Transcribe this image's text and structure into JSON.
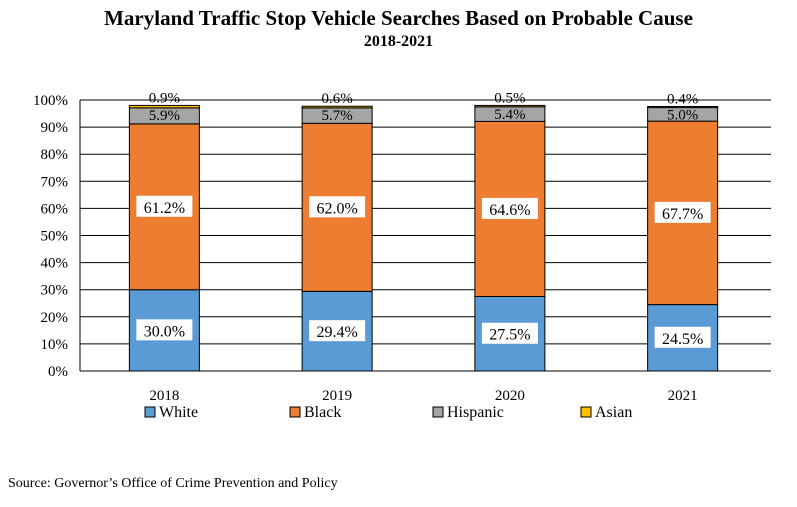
{
  "chart_data": {
    "type": "bar",
    "stacked": true,
    "title": "Maryland Traffic Stop Vehicle Searches Based on Probable Cause",
    "subtitle": "2018-2021",
    "categories": [
      "2018",
      "2019",
      "2020",
      "2021"
    ],
    "series": [
      {
        "name": "White",
        "values": [
          30.0,
          29.4,
          27.5,
          24.5
        ],
        "labels": [
          "30.0%",
          "29.4%",
          "27.5%",
          "24.5%"
        ],
        "color": "#5b9bd5"
      },
      {
        "name": "Black",
        "values": [
          61.2,
          62.0,
          64.6,
          67.7
        ],
        "labels": [
          "61.2%",
          "62.0%",
          "64.6%",
          "67.7%"
        ],
        "color": "#ed7d31"
      },
      {
        "name": "Hispanic",
        "values": [
          5.9,
          5.7,
          5.4,
          5.0
        ],
        "labels": [
          "5.9%",
          "5.7%",
          "5.4%",
          "5.0%"
        ],
        "color": "#a5a5a5"
      },
      {
        "name": "Asian",
        "values": [
          0.9,
          0.6,
          0.5,
          0.4
        ],
        "labels": [
          "0.9%",
          "0.6%",
          "0.5%",
          "0.4%"
        ],
        "color": "#ffc000"
      }
    ],
    "yticks": [
      "0%",
      "10%",
      "20%",
      "30%",
      "40%",
      "50%",
      "60%",
      "70%",
      "80%",
      "90%",
      "100%"
    ],
    "ylim": [
      0,
      100
    ],
    "grid": true,
    "legend": "bottom"
  },
  "source": "Source:  Governor’s Office of Crime Prevention and Policy"
}
